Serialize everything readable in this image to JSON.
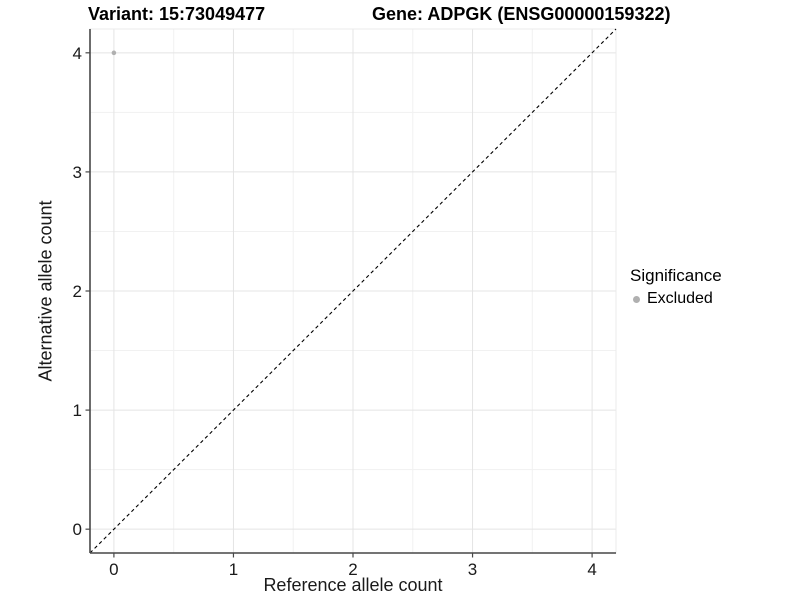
{
  "header": {
    "variant_title": "Variant: 15:73049477",
    "gene_title": "Gene: ADPGK (ENSG00000159322)"
  },
  "chart_data": {
    "type": "scatter",
    "title": "Variant: 15:73049477 | Gene: ADPGK (ENSG00000159322)",
    "xlabel": "Reference allele count",
    "ylabel": "Alternative allele count",
    "xlim": [
      -0.2,
      4.2
    ],
    "ylim": [
      -0.2,
      4.2
    ],
    "x_ticks": [
      0,
      1,
      2,
      3,
      4
    ],
    "y_ticks": [
      0,
      1,
      2,
      3,
      4
    ],
    "x_minor_ticks": [
      0.5,
      1.5,
      2.5,
      3.5
    ],
    "y_minor_ticks": [
      0.5,
      1.5,
      2.5,
      3.5
    ],
    "grid": true,
    "points": [
      {
        "x": 0,
        "y": 4,
        "series": "Excluded",
        "color": "#b0b0b0",
        "r": 2.3
      }
    ],
    "reference_line": {
      "type": "identity",
      "style": "dashed",
      "color": "#000000",
      "from": [
        -0.2,
        -0.2
      ],
      "to": [
        4.2,
        4.2
      ]
    },
    "legend_position": "right",
    "legend": {
      "title": "Significance",
      "entries": [
        {
          "label": "Excluded",
          "color": "#b0b0b0"
        }
      ]
    },
    "colors": {
      "background": "#ffffff",
      "grid_major": "#e4e4e4",
      "grid_minor": "#f1f1f1",
      "panel_border": "#ebebeb",
      "axis_line": "#474747",
      "tick_text": "#1a1a1a"
    }
  }
}
